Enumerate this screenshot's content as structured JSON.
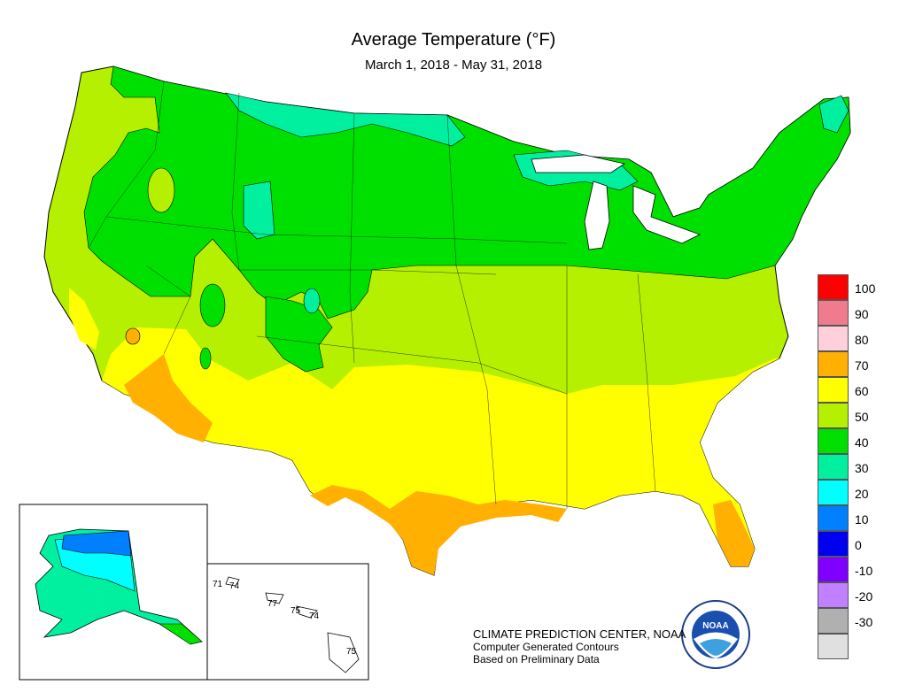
{
  "title": "Average Temperature (°F)",
  "subtitle": "March 1, 2018 - May 31, 2018",
  "legend": {
    "items": [
      {
        "label": "100",
        "color": "#ff0000"
      },
      {
        "label": "90",
        "color": "#f07a8e"
      },
      {
        "label": "80",
        "color": "#ffd0dc"
      },
      {
        "label": "70",
        "color": "#ffb000"
      },
      {
        "label": "60",
        "color": "#ffff00"
      },
      {
        "label": "50",
        "color": "#b4f000"
      },
      {
        "label": "40",
        "color": "#00e000"
      },
      {
        "label": "30",
        "color": "#00f0a0"
      },
      {
        "label": "20",
        "color": "#00ffff"
      },
      {
        "label": "10",
        "color": "#0080ff"
      },
      {
        "label": "0",
        "color": "#0000f0"
      },
      {
        "label": "-10",
        "color": "#8000ff"
      },
      {
        "label": "-20",
        "color": "#c080ff"
      },
      {
        "label": "-30",
        "color": "#b0b0b0"
      },
      {
        "label": "",
        "color": "#e0e0e0"
      }
    ]
  },
  "hawaii_labels": [
    "71",
    "74",
    "77",
    "75",
    "74",
    "75"
  ],
  "credits": {
    "line1": "CLIMATE PREDICTION CENTER, NOAA",
    "line2": "Computer Generated Contours",
    "line3": "Based on Preliminary Data"
  },
  "logo": {
    "text": "NOAA",
    "ring": "NATIONAL OCEANIC AND ATMOSPHERIC ADMINISTRATION · U.S. DEPARTMENT OF COMMERCE"
  }
}
